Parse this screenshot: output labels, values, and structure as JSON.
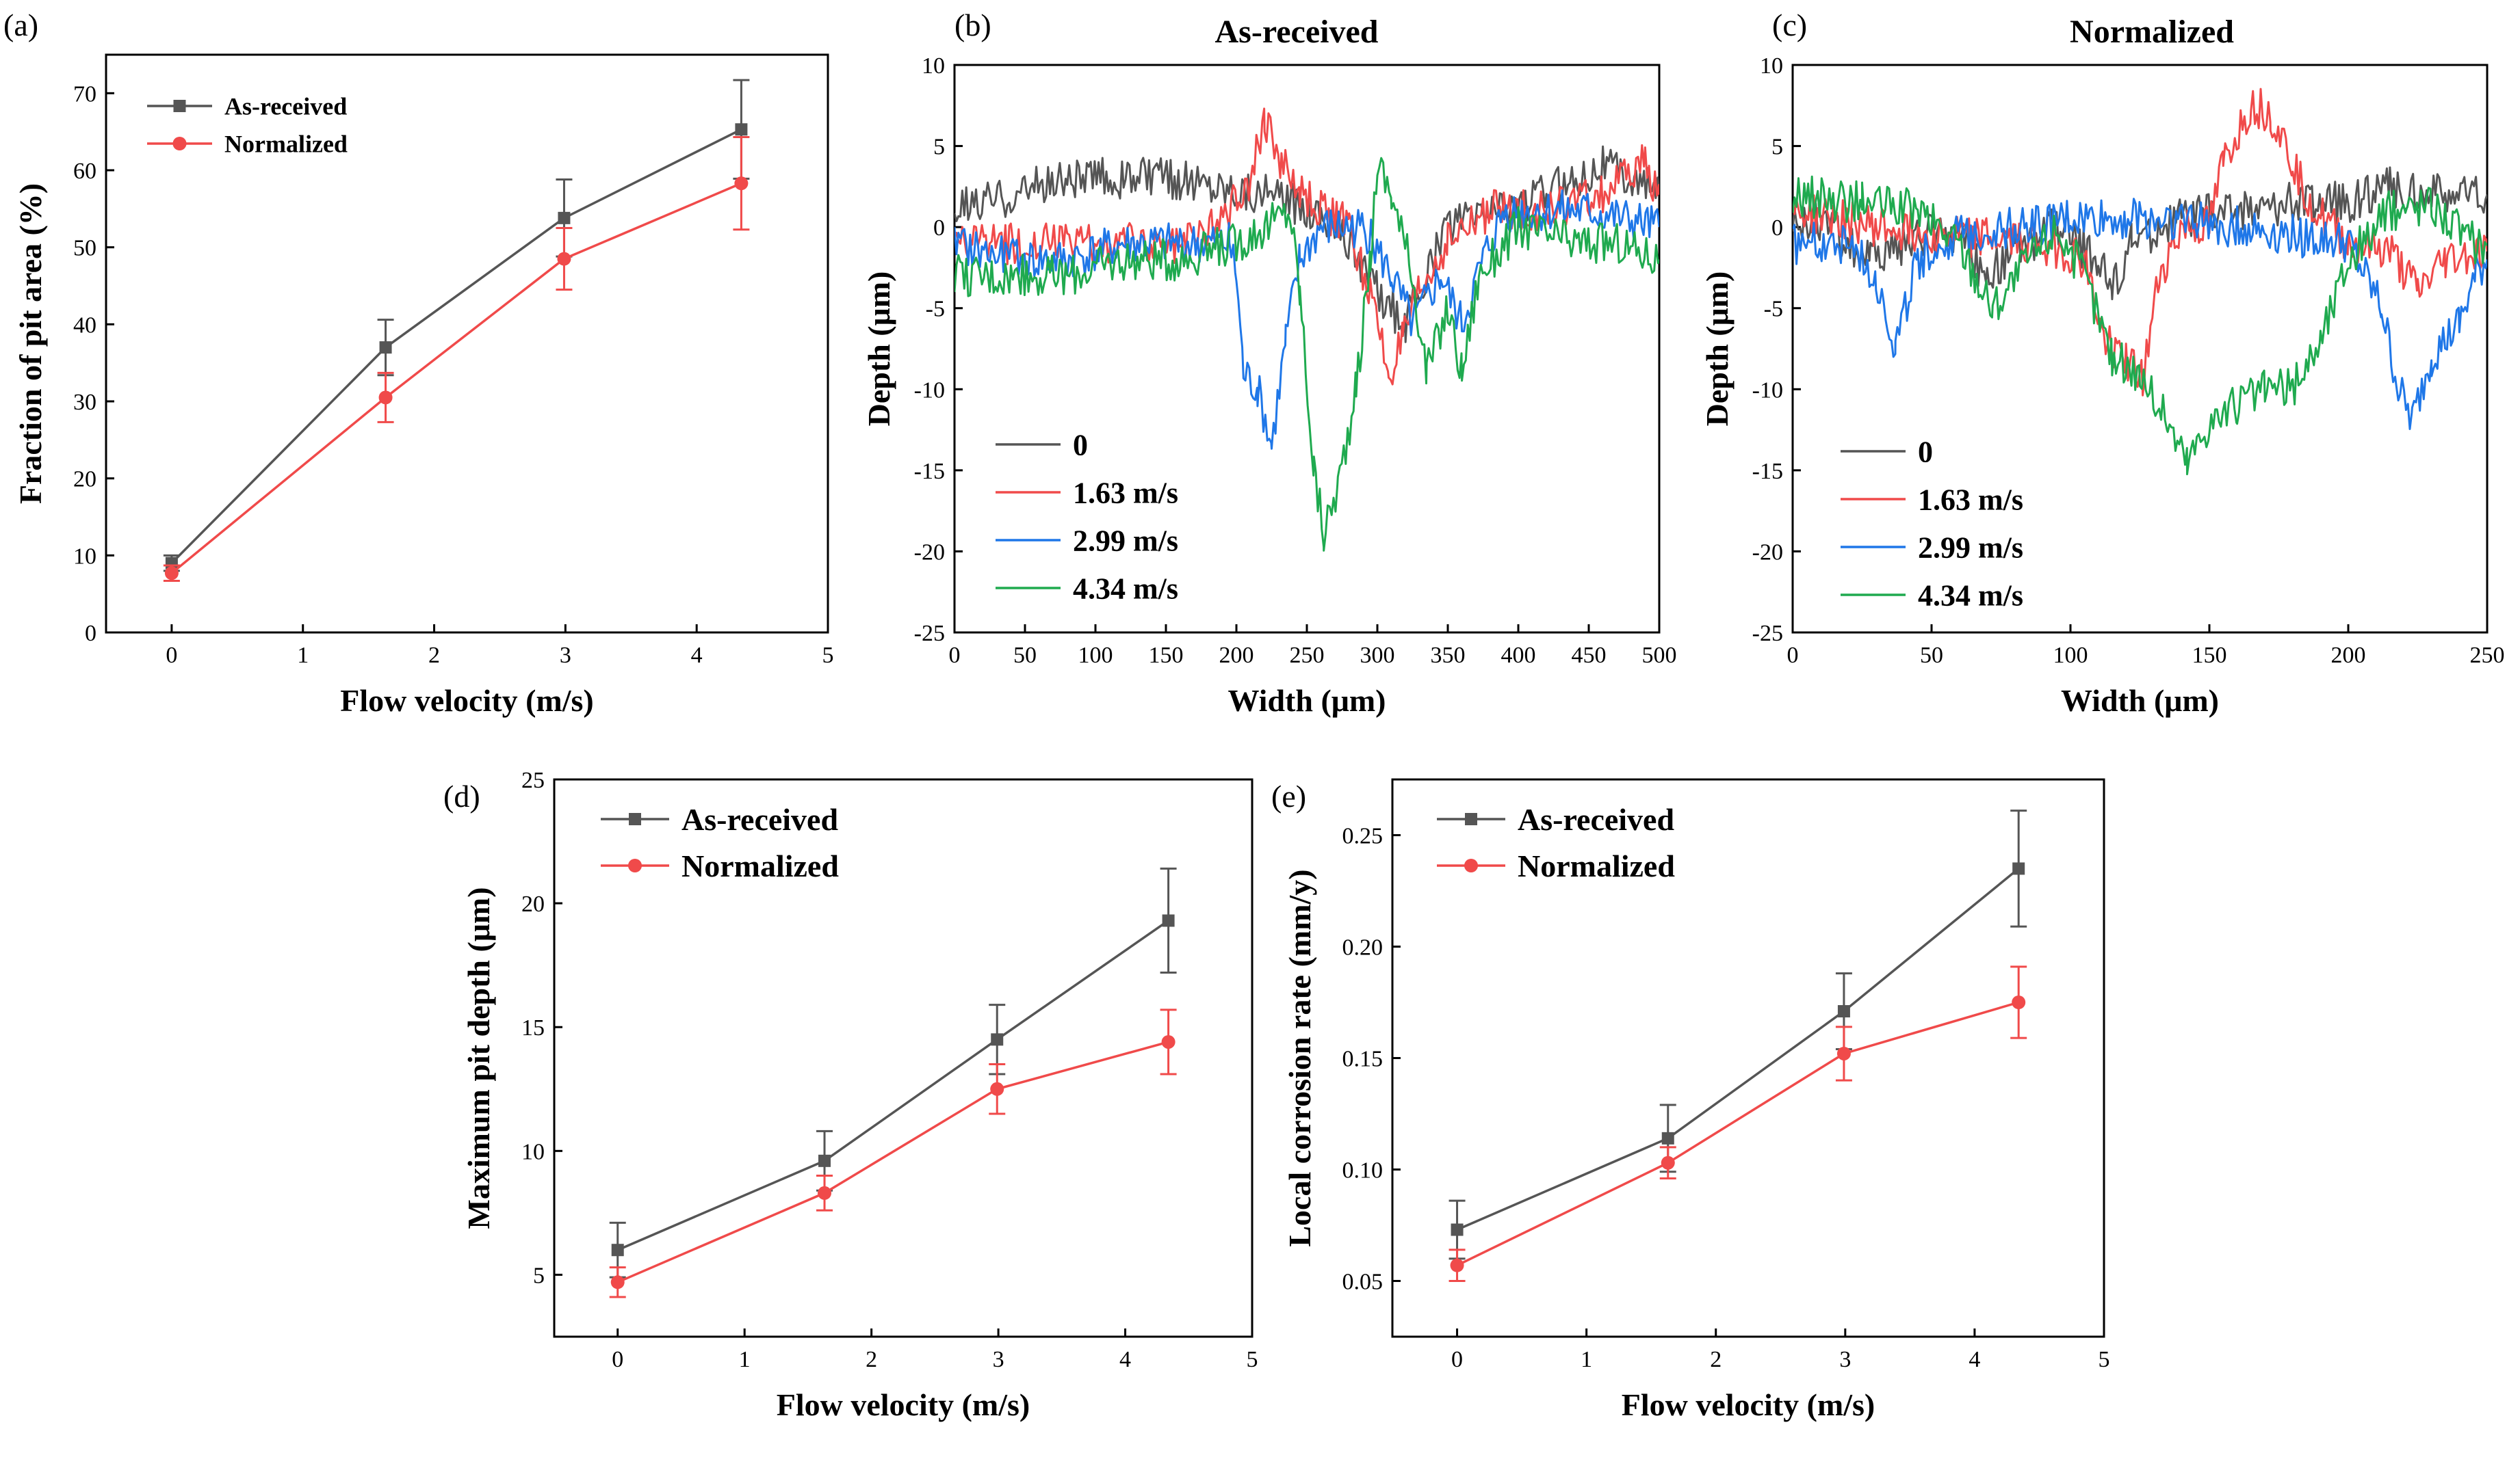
{
  "chart_data": [
    {
      "panel": "(a)",
      "type": "line",
      "title": "",
      "xlabel": "Flow velocity (m/s)",
      "ylabel": "Fraction of pit area (%)",
      "xlim": [
        -0.5,
        5
      ],
      "ylim": [
        0,
        75
      ],
      "xticks": [
        0,
        1,
        2,
        3,
        4,
        5
      ],
      "yticks": [
        0,
        10,
        20,
        30,
        40,
        50,
        60,
        70
      ],
      "legend_position": "top-left",
      "x": [
        0,
        1.63,
        2.99,
        4.34
      ],
      "series": [
        {
          "name": "As-received",
          "color": "#555555",
          "marker": "square",
          "values": [
            9.0,
            37.0,
            53.8,
            65.3
          ],
          "errors": [
            1.0,
            3.6,
            5.0,
            6.4
          ]
        },
        {
          "name": "Normalized",
          "color": "#f04a4a",
          "marker": "circle",
          "values": [
            7.7,
            30.5,
            48.5,
            58.3
          ],
          "errors": [
            1.0,
            3.2,
            4.0,
            6.0
          ]
        }
      ]
    },
    {
      "panel": "(b)",
      "type": "line",
      "title": "As-received",
      "xlabel": "Width (μm)",
      "ylabel": "Depth (μm)",
      "xlim": [
        0,
        500
      ],
      "ylim": [
        -25,
        10
      ],
      "xticks": [
        0,
        50,
        100,
        150,
        200,
        250,
        300,
        350,
        400,
        450,
        500
      ],
      "yticks": [
        10,
        5,
        0,
        -5,
        -10,
        -15,
        -20,
        -25
      ],
      "legend_position": "bottom-left",
      "series": [
        {
          "name": "0",
          "color": "#555555",
          "profile": [
            [
              0,
              1
            ],
            [
              40,
              2
            ],
            [
              80,
              3
            ],
            [
              120,
              3
            ],
            [
              160,
              3
            ],
            [
              200,
              2.5
            ],
            [
              240,
              1.5
            ],
            [
              260,
              1
            ],
            [
              280,
              -1
            ],
            [
              300,
              -4
            ],
            [
              320,
              -6
            ],
            [
              335,
              -3
            ],
            [
              350,
              0
            ],
            [
              380,
              1
            ],
            [
              420,
              2
            ],
            [
              460,
              4
            ],
            [
              500,
              2
            ]
          ]
        },
        {
          "name": "1.63 m/s",
          "color": "#f04a4a",
          "profile": [
            [
              0,
              -1
            ],
            [
              40,
              -1
            ],
            [
              80,
              -1
            ],
            [
              120,
              -1
            ],
            [
              160,
              -1
            ],
            [
              195,
              1
            ],
            [
              210,
              3
            ],
            [
              220,
              6.5
            ],
            [
              232,
              4
            ],
            [
              245,
              2
            ],
            [
              260,
              1
            ],
            [
              280,
              0
            ],
            [
              295,
              -4
            ],
            [
              308,
              -9
            ],
            [
              318,
              -7
            ],
            [
              330,
              -4
            ],
            [
              350,
              -1
            ],
            [
              380,
              1
            ],
            [
              420,
              1
            ],
            [
              460,
              2
            ],
            [
              490,
              4
            ],
            [
              500,
              2
            ]
          ]
        },
        {
          "name": "2.99 m/s",
          "color": "#1f77e8",
          "profile": [
            [
              0,
              -1
            ],
            [
              40,
              -2
            ],
            [
              80,
              -2
            ],
            [
              120,
              -1
            ],
            [
              160,
              -1
            ],
            [
              195,
              -1
            ],
            [
              200,
              -3
            ],
            [
              205,
              -9
            ],
            [
              215,
              -10
            ],
            [
              225,
              -13.5
            ],
            [
              235,
              -7
            ],
            [
              245,
              -2
            ],
            [
              260,
              0
            ],
            [
              290,
              0
            ],
            [
              310,
              -3
            ],
            [
              325,
              -6
            ],
            [
              345,
              -3
            ],
            [
              360,
              -6
            ],
            [
              375,
              -2
            ],
            [
              390,
              1
            ],
            [
              420,
              1
            ],
            [
              450,
              1
            ],
            [
              500,
              0
            ]
          ]
        },
        {
          "name": "4.34 m/s",
          "color": "#1faa4f",
          "profile": [
            [
              0,
              -3
            ],
            [
              40,
              -3
            ],
            [
              80,
              -3
            ],
            [
              120,
              -2
            ],
            [
              160,
              -2
            ],
            [
              200,
              -1
            ],
            [
              220,
              0
            ],
            [
              238,
              1
            ],
            [
              245,
              -4
            ],
            [
              255,
              -15
            ],
            [
              262,
              -19
            ],
            [
              272,
              -16
            ],
            [
              285,
              -10
            ],
            [
              295,
              -2
            ],
            [
              300,
              4
            ],
            [
              310,
              2
            ],
            [
              325,
              -3
            ],
            [
              335,
              -9
            ],
            [
              350,
              -5
            ],
            [
              360,
              -9
            ],
            [
              372,
              -3
            ],
            [
              400,
              0
            ],
            [
              440,
              -1
            ],
            [
              470,
              -1
            ],
            [
              500,
              -2
            ]
          ]
        }
      ]
    },
    {
      "panel": "(c)",
      "type": "line",
      "title": "Normalized",
      "xlabel": "Width (μm)",
      "ylabel": "Depth (μm)",
      "xlim": [
        0,
        250
      ],
      "ylim": [
        -25,
        10
      ],
      "xticks": [
        0,
        50,
        100,
        150,
        200,
        250
      ],
      "yticks": [
        10,
        5,
        0,
        -5,
        -10,
        -15,
        -20,
        -25
      ],
      "legend_position": "bottom-left",
      "series": [
        {
          "name": "0",
          "color": "#555555",
          "profile": [
            [
              0,
              0
            ],
            [
              10,
              0.5
            ],
            [
              20,
              -1
            ],
            [
              28,
              -2
            ],
            [
              40,
              -1
            ],
            [
              55,
              0
            ],
            [
              70,
              -3
            ],
            [
              80,
              -1.5
            ],
            [
              95,
              0
            ],
            [
              110,
              -2
            ],
            [
              115,
              -4
            ],
            [
              122,
              -1
            ],
            [
              140,
              0.5
            ],
            [
              160,
              1
            ],
            [
              180,
              1.5
            ],
            [
              200,
              1.5
            ],
            [
              215,
              2.5
            ],
            [
              230,
              2
            ],
            [
              250,
              2
            ]
          ]
        },
        {
          "name": "1.63 m/s",
          "color": "#f04a4a",
          "profile": [
            [
              0,
              1
            ],
            [
              30,
              0
            ],
            [
              60,
              -0.5
            ],
            [
              90,
              -1
            ],
            [
              105,
              -2
            ],
            [
              112,
              -7
            ],
            [
              120,
              -8
            ],
            [
              126,
              -9.5
            ],
            [
              132,
              -3
            ],
            [
              140,
              0
            ],
            [
              150,
              0
            ],
            [
              155,
              4
            ],
            [
              165,
              7.5
            ],
            [
              172,
              7
            ],
            [
              180,
              4
            ],
            [
              188,
              1
            ],
            [
              200,
              -1
            ],
            [
              215,
              -1.5
            ],
            [
              225,
              -4
            ],
            [
              235,
              -2
            ],
            [
              250,
              -1.5
            ]
          ]
        },
        {
          "name": "2.99 m/s",
          "color": "#1f77e8",
          "profile": [
            [
              0,
              -1
            ],
            [
              20,
              -1
            ],
            [
              30,
              -3
            ],
            [
              37,
              -7.5
            ],
            [
              45,
              -2
            ],
            [
              60,
              -0.5
            ],
            [
              80,
              0
            ],
            [
              100,
              0.5
            ],
            [
              120,
              0.5
            ],
            [
              140,
              0.5
            ],
            [
              160,
              0
            ],
            [
              180,
              -0.5
            ],
            [
              200,
              -1
            ],
            [
              212,
              -5
            ],
            [
              218,
              -10
            ],
            [
              223,
              -12
            ],
            [
              230,
              -8
            ],
            [
              240,
              -6
            ],
            [
              246,
              -3
            ],
            [
              250,
              -2
            ]
          ]
        },
        {
          "name": "4.34 m/s",
          "color": "#1faa4f",
          "profile": [
            [
              0,
              2
            ],
            [
              25,
              1.5
            ],
            [
              45,
              1
            ],
            [
              60,
              -1
            ],
            [
              72,
              -5
            ],
            [
              85,
              -2
            ],
            [
              95,
              0
            ],
            [
              105,
              -3
            ],
            [
              115,
              -8
            ],
            [
              125,
              -9
            ],
            [
              135,
              -12
            ],
            [
              142,
              -14.5
            ],
            [
              150,
              -12
            ],
            [
              160,
              -11
            ],
            [
              170,
              -10
            ],
            [
              180,
              -10
            ],
            [
              190,
              -7
            ],
            [
              200,
              -2
            ],
            [
              215,
              1
            ],
            [
              230,
              1.5
            ],
            [
              245,
              -1
            ],
            [
              250,
              -1
            ]
          ]
        }
      ]
    },
    {
      "panel": "(d)",
      "type": "line",
      "title": "",
      "xlabel": "Flow velocity (m/s)",
      "ylabel": "Maximum pit depth (μm)",
      "xlim": [
        -0.5,
        5
      ],
      "ylim": [
        2.5,
        25
      ],
      "xticks": [
        0,
        1,
        2,
        3,
        4,
        5
      ],
      "yticks": [
        5,
        10,
        15,
        20,
        25
      ],
      "legend_position": "top-left",
      "x": [
        0,
        1.63,
        2.99,
        4.34
      ],
      "series": [
        {
          "name": "As-received",
          "color": "#555555",
          "marker": "square",
          "values": [
            6.0,
            9.6,
            14.5,
            19.3
          ],
          "errors": [
            1.1,
            1.2,
            1.4,
            2.1
          ]
        },
        {
          "name": "Normalized",
          "color": "#f04a4a",
          "marker": "circle",
          "values": [
            4.7,
            8.3,
            12.5,
            14.4
          ],
          "errors": [
            0.6,
            0.7,
            1.0,
            1.3
          ]
        }
      ]
    },
    {
      "panel": "(e)",
      "type": "line",
      "title": "",
      "xlabel": "Flow velocity (m/s)",
      "ylabel": "Local corrosion rate (mm/y)",
      "xlim": [
        -0.5,
        5
      ],
      "ylim": [
        0.025,
        0.275
      ],
      "xticks": [
        0,
        1,
        2,
        3,
        4,
        5
      ],
      "yticks": [
        0.05,
        0.1,
        0.15,
        0.2,
        0.25
      ],
      "legend_position": "top-left",
      "x": [
        0,
        1.63,
        2.99,
        4.34
      ],
      "series": [
        {
          "name": "As-received",
          "color": "#555555",
          "marker": "square",
          "values": [
            0.073,
            0.114,
            0.171,
            0.235
          ],
          "errors": [
            0.013,
            0.015,
            0.017,
            0.026
          ]
        },
        {
          "name": "Normalized",
          "color": "#f04a4a",
          "marker": "circle",
          "values": [
            0.057,
            0.103,
            0.152,
            0.175
          ],
          "errors": [
            0.007,
            0.007,
            0.012,
            0.016
          ]
        }
      ]
    }
  ]
}
